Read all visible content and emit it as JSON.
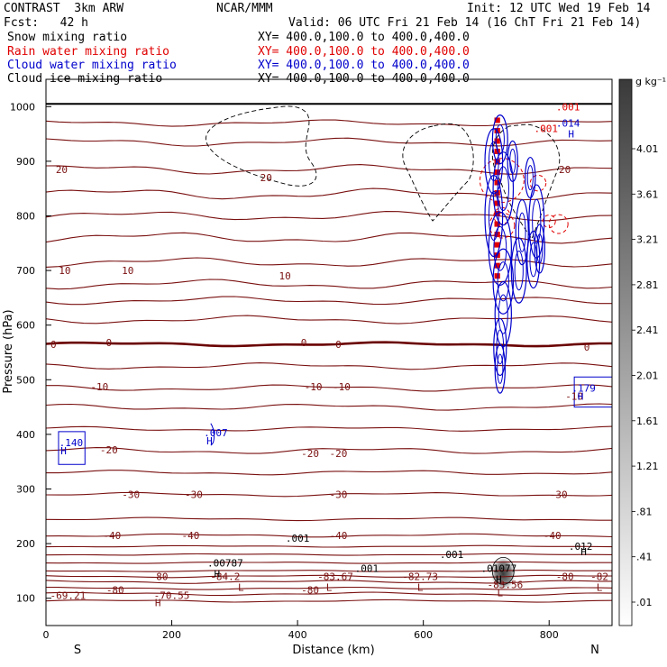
{
  "header": {
    "model": "CONTRAST  3km ARW",
    "org": "NCAR/MMM",
    "init": "Init: 12 UTC Wed 19 Feb 14",
    "fcst": "Fcst:   42 h",
    "valid": "Valid: 06 UTC Fri 21 Feb 14 (16 ChT Fri 21 Feb 14)",
    "fields": [
      {
        "label": "Snow mixing ratio",
        "xy": "XY= 400.0,100.0 to 400.0,400.0",
        "color": "#000000"
      },
      {
        "label": "Rain water mixing ratio",
        "xy": "XY= 400.0,100.0 to 400.0,400.0",
        "color": "#e00000"
      },
      {
        "label": "Cloud water mixing ratio",
        "xy": "XY= 400.0,100.0 to 400.0,400.0",
        "color": "#0000cc"
      },
      {
        "label": "Cloud ice mixing ratio",
        "xy": "XY= 400.0,100.0 to 400.0,400.0",
        "color": "#000000"
      }
    ]
  },
  "chart_data": {
    "type": "cross-section",
    "xlabel": "Distance (km)",
    "ylabel": "Pressure (hPa)",
    "xlim": [
      0,
      900
    ],
    "ylim": [
      1050,
      50
    ],
    "x_ticks": [
      0,
      200,
      400,
      600,
      800
    ],
    "y_ticks": [
      100,
      200,
      300,
      400,
      500,
      600,
      700,
      800,
      900,
      1000
    ],
    "x_end_labels": {
      "left": "S",
      "right": "N"
    },
    "temperature_contours": [
      {
        "label": "-80",
        "p": 130
      },
      {
        "label": "-40",
        "p": 215
      },
      {
        "label": "-30",
        "p": 290
      },
      {
        "label": "-20",
        "p": 370
      },
      {
        "label": "-10",
        "p": 485
      },
      {
        "label": "0",
        "p": 565
      },
      {
        "label": "10",
        "p": 715
      },
      {
        "label": "20",
        "p": 885
      }
    ],
    "contour_labels": [
      {
        "text": "-69.21",
        "x": 35,
        "p": 105,
        "color": "#7a1010"
      },
      {
        "text": "-70.55",
        "x": 200,
        "p": 105,
        "color": "#7a1010"
      },
      {
        "text": "-80",
        "x": 110,
        "p": 115,
        "color": "#7a1010"
      },
      {
        "text": "-80",
        "x": 180,
        "p": 140,
        "color": "#7a1010"
      },
      {
        "text": "-80",
        "x": 420,
        "p": 115,
        "color": "#7a1010"
      },
      {
        "text": "-80",
        "x": 825,
        "p": 140,
        "color": "#7a1010"
      },
      {
        "text": "-84.2",
        "x": 285,
        "p": 140,
        "color": "#7a1010"
      },
      {
        "text": "-83.67",
        "x": 460,
        "p": 140,
        "color": "#7a1010"
      },
      {
        "text": "-82.73",
        "x": 595,
        "p": 140,
        "color": "#7a1010"
      },
      {
        "text": "-83.56",
        "x": 730,
        "p": 125,
        "color": "#7a1010"
      },
      {
        "text": "-82",
        "x": 880,
        "p": 140,
        "color": "#7a1010"
      },
      {
        "text": "-40",
        "x": 105,
        "p": 215,
        "color": "#7a1010"
      },
      {
        "text": "-40",
        "x": 230,
        "p": 215,
        "color": "#7a1010"
      },
      {
        "text": "-40",
        "x": 465,
        "p": 215,
        "color": "#7a1010"
      },
      {
        "text": "-40",
        "x": 805,
        "p": 215,
        "color": "#7a1010"
      },
      {
        "text": "-30",
        "x": 135,
        "p": 290,
        "color": "#7a1010"
      },
      {
        "text": "-30",
        "x": 235,
        "p": 290,
        "color": "#7a1010"
      },
      {
        "text": "-30",
        "x": 465,
        "p": 290,
        "color": "#7a1010"
      },
      {
        "text": "-30",
        "x": 815,
        "p": 290,
        "color": "#7a1010"
      },
      {
        "text": "-20",
        "x": 100,
        "p": 372,
        "color": "#7a1010"
      },
      {
        "text": "-20",
        "x": 420,
        "p": 365,
        "color": "#7a1010"
      },
      {
        "text": "-20",
        "x": 465,
        "p": 365,
        "color": "#7a1010"
      },
      {
        "text": "-10",
        "x": 85,
        "p": 487,
        "color": "#7a1010"
      },
      {
        "text": "-10",
        "x": 425,
        "p": 487,
        "color": "#7a1010"
      },
      {
        "text": "-10",
        "x": 470,
        "p": 487,
        "color": "#7a1010"
      },
      {
        "text": "-10",
        "x": 840,
        "p": 470,
        "color": "#7a1010"
      },
      {
        "text": "0",
        "x": 12,
        "p": 565,
        "color": "#7a1010"
      },
      {
        "text": "0",
        "x": 100,
        "p": 568,
        "color": "#7a1010"
      },
      {
        "text": "0",
        "x": 410,
        "p": 568,
        "color": "#7a1010"
      },
      {
        "text": "0",
        "x": 465,
        "p": 565,
        "color": "#7a1010"
      },
      {
        "text": "0",
        "x": 860,
        "p": 560,
        "color": "#7a1010"
      },
      {
        "text": "10",
        "x": 30,
        "p": 700,
        "color": "#7a1010"
      },
      {
        "text": "10",
        "x": 130,
        "p": 700,
        "color": "#7a1010"
      },
      {
        "text": "10",
        "x": 380,
        "p": 690,
        "color": "#7a1010"
      },
      {
        "text": "20",
        "x": 25,
        "p": 885,
        "color": "#7a1010"
      },
      {
        "text": "20",
        "x": 350,
        "p": 870,
        "color": "#7a1010"
      },
      {
        "text": "20",
        "x": 825,
        "p": 885,
        "color": "#7a1010"
      },
      {
        "text": ".00787",
        "x": 285,
        "p": 165,
        "color": "#000000"
      },
      {
        "text": ".001",
        "x": 510,
        "p": 155,
        "color": "#000000"
      },
      {
        "text": ".001",
        "x": 400,
        "p": 210,
        "color": "#000000"
      },
      {
        "text": ".001",
        "x": 645,
        "p": 180,
        "color": "#000000"
      },
      {
        "text": ".01077",
        "x": 720,
        "p": 155,
        "color": "#000000"
      },
      {
        "text": ".012",
        "x": 850,
        "p": 195,
        "color": "#000000"
      },
      {
        "text": ".140",
        "x": 40,
        "p": 385,
        "color": "#0000cc"
      },
      {
        "text": ".007",
        "x": 270,
        "p": 403,
        "color": "#0000cc"
      },
      {
        "text": ".179",
        "x": 855,
        "p": 485,
        "color": "#0000cc"
      },
      {
        "text": ".014",
        "x": 830,
        "p": 970,
        "color": "#0000cc"
      },
      {
        "text": ".001",
        "x": 795,
        "p": 960,
        "color": "#e00000"
      },
      {
        "text": ".001",
        "x": 830,
        "p": 1000,
        "color": "#e00000"
      }
    ],
    "extrema": [
      {
        "text": "L",
        "x": 310,
        "p": 120,
        "color": "#7a1010"
      },
      {
        "text": "L",
        "x": 450,
        "p": 120,
        "color": "#7a1010"
      },
      {
        "text": "L",
        "x": 595,
        "p": 120,
        "color": "#7a1010"
      },
      {
        "text": "L",
        "x": 722,
        "p": 110,
        "color": "#7a1010"
      },
      {
        "text": "L",
        "x": 880,
        "p": 120,
        "color": "#7a1010"
      },
      {
        "text": "H",
        "x": 178,
        "p": 92,
        "color": "#7a1010"
      },
      {
        "text": "H",
        "x": 272,
        "p": 145,
        "color": "#000000"
      },
      {
        "text": "H",
        "x": 720,
        "p": 135,
        "color": "#000000"
      },
      {
        "text": "H",
        "x": 855,
        "p": 185,
        "color": "#000000"
      },
      {
        "text": "H",
        "x": 28,
        "p": 370,
        "color": "#0000cc"
      },
      {
        "text": "H",
        "x": 260,
        "p": 388,
        "color": "#0000cc"
      },
      {
        "text": "H",
        "x": 850,
        "p": 470,
        "color": "#0000cc"
      },
      {
        "text": "H",
        "x": 835,
        "p": 950,
        "color": "#0000cc"
      }
    ],
    "colorbar": {
      "unit": "g kg⁻¹",
      "labels": [
        "4.01",
        "3.61",
        "3.21",
        "2.81",
        "2.41",
        "2.01",
        "1.61",
        "1.21",
        ".81",
        ".41",
        ".01"
      ],
      "max_color": "#3a3a3a",
      "min_color": "#ffffff"
    },
    "colors": {
      "temperature": "#7a1010",
      "zero_line": "#6a0000",
      "rain": "#e00000",
      "cloud_water": "#0000cc",
      "snow_ice": "#000000"
    }
  }
}
